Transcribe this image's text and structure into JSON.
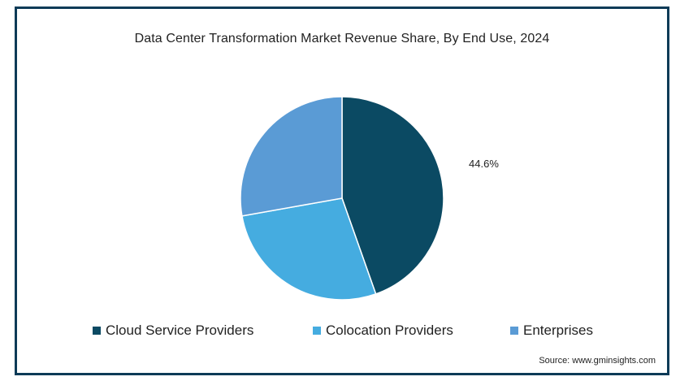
{
  "chart_data": {
    "type": "pie",
    "title": "Data Center Transformation Market  Revenue Share, By End Use, 2024",
    "categories": [
      "Cloud Service Providers",
      "Colocation Providers",
      "Enterprises"
    ],
    "values": [
      44.6,
      27.6,
      27.8
    ],
    "data_labels": [
      "44.6%",
      "",
      ""
    ],
    "colors": [
      "#0b4a63",
      "#45ace0",
      "#5a9bd5"
    ],
    "legend_position": "bottom"
  },
  "source": "Source: www.gminsights.com"
}
